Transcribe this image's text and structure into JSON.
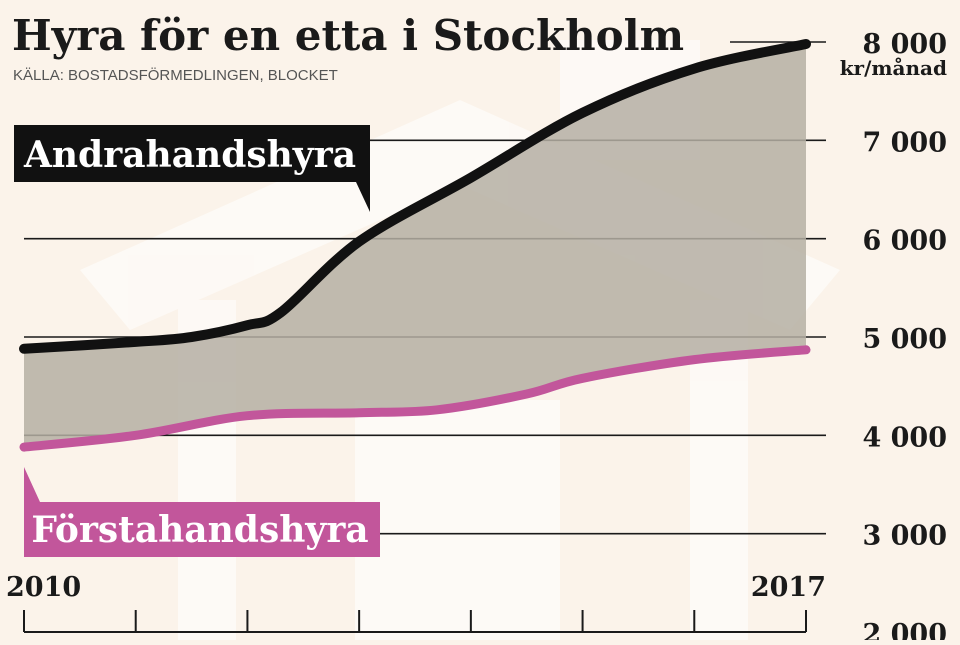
{
  "colors": {
    "background": "#fbf3ea",
    "watermark": "#ffffff",
    "fill_between": "#b5afa3",
    "andrahand_line": "#111111",
    "forstahand_line": "#c2569b",
    "gridline": "#1a1a1a",
    "text": "#1a1a1a",
    "label_text": "#ffffff"
  },
  "chart_data": {
    "type": "line",
    "title": "Hyra för en etta i Stockholm",
    "subtitle": "KÄLLA: BOSTADSFÖRMEDLINGEN, BLOCKET",
    "ylabel": "kr/månad",
    "ylim": [
      2000,
      8000
    ],
    "yticks": [
      2000,
      3000,
      4000,
      5000,
      6000,
      7000,
      8000
    ],
    "ytick_labels": [
      "2 000",
      "3 000",
      "4 000",
      "5 000",
      "6 000",
      "7 000",
      "8 000"
    ],
    "xlim": [
      2010,
      2017
    ],
    "x_tick_labels": [
      "2010",
      "2017"
    ],
    "x_tick_positions": [
      2010,
      2011,
      2012,
      2013,
      2014,
      2015,
      2016,
      2017
    ],
    "series": [
      {
        "name": "Andrahandshyra",
        "x": [
          2010,
          2011,
          2011.5,
          2012,
          2012.3,
          2013,
          2014,
          2015,
          2016,
          2017
        ],
        "values": [
          4880,
          4950,
          5000,
          5120,
          5250,
          5970,
          6620,
          7280,
          7730,
          7980
        ]
      },
      {
        "name": "Förstahandshyra",
        "x": [
          2010,
          2011,
          2012,
          2013,
          2013.7,
          2014.5,
          2015,
          2016,
          2017
        ],
        "values": [
          3880,
          4000,
          4200,
          4230,
          4260,
          4420,
          4580,
          4770,
          4870
        ]
      }
    ],
    "annotations": [
      {
        "text": "Andrahandshyra",
        "series": "Andrahandshyra"
      },
      {
        "text": "Förstahandshyra",
        "series": "Förstahandshyra"
      }
    ]
  }
}
